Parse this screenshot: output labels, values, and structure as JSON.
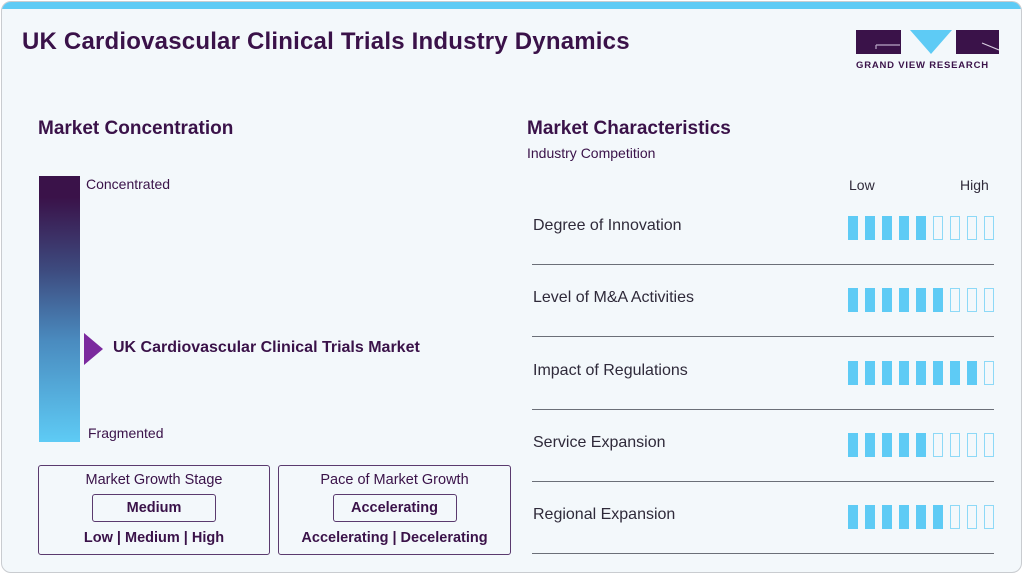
{
  "header": {
    "title": "UK Cardiovascular Clinical Trials Industry Dynamics",
    "logo_text": "GRAND VIEW RESEARCH"
  },
  "colors": {
    "accent_blue": "#5ecbf5",
    "dark_purple": "#3a1249",
    "pointer_purple": "#7b2a9e"
  },
  "concentration": {
    "heading": "Market Concentration",
    "top_label": "Concentrated",
    "bottom_label": "Fragmented",
    "market_label": "UK Cardiovascular Clinical Trials Market"
  },
  "growth_stage": {
    "title": "Market Growth Stage",
    "value": "Medium",
    "scale": "Low | Medium | High"
  },
  "growth_pace": {
    "title": "Pace of Market Growth",
    "value": "Accelerating",
    "scale": "Accelerating | Decelerating"
  },
  "characteristics": {
    "heading": "Market Characteristics",
    "subheading": "Industry Competition",
    "scale_low": "Low",
    "scale_high": "High",
    "max_level": 9,
    "items": [
      {
        "label": "Degree of Innovation",
        "level": 5
      },
      {
        "label": "Level of M&A Activities",
        "level": 6
      },
      {
        "label": "Impact of Regulations",
        "level": 8
      },
      {
        "label": "Service Expansion",
        "level": 5
      },
      {
        "label": "Regional Expansion",
        "level": 6
      }
    ]
  }
}
